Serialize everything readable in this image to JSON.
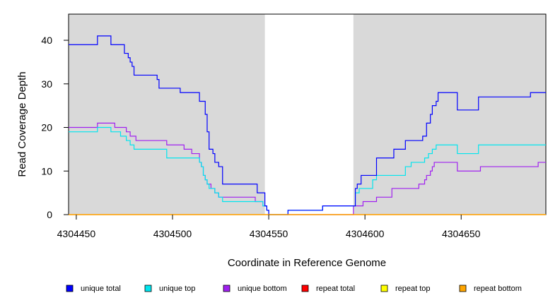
{
  "chart_data": {
    "type": "line",
    "title": "",
    "xlabel": "Coordinate in Reference Genome",
    "ylabel": "Read Coverage Depth",
    "xlim": [
      4304446,
      4304694
    ],
    "ylim": [
      0,
      46
    ],
    "xticks": [
      4304450,
      4304500,
      4304550,
      4304600,
      4304650
    ],
    "yticks": [
      0,
      10,
      20,
      30,
      40
    ],
    "shaded_regions": [
      [
        4304446,
        4304548
      ],
      [
        4304594,
        4304694
      ]
    ],
    "grid": false,
    "legend_position": "bottom",
    "series": [
      {
        "name": "unique total",
        "color": "#0000ff",
        "step": "post",
        "x": [
          4304446,
          4304456,
          4304461,
          4304468,
          4304471,
          4304475,
          4304477,
          4304478,
          4304479,
          4304480,
          4304488,
          4304492,
          4304493,
          4304499,
          4304504,
          4304514,
          4304517,
          4304518,
          4304519,
          4304521,
          4304522,
          4304524,
          4304526,
          4304544,
          4304548,
          4304549,
          4304550,
          4304560,
          4304578,
          4304594,
          4304595,
          4304596,
          4304598,
          4304606,
          4304615,
          4304621,
          4304630,
          4304632,
          4304634,
          4304635,
          4304637,
          4304638,
          4304639,
          4304648,
          4304659,
          4304686,
          4304694
        ],
        "y": [
          39,
          39,
          41,
          39,
          39,
          37,
          36,
          35,
          34,
          32,
          32,
          31,
          29,
          29,
          28,
          26,
          23,
          19,
          15,
          14,
          12,
          11,
          7,
          5,
          2,
          1,
          0,
          1,
          2,
          2,
          6,
          7,
          9,
          13,
          15,
          17,
          18,
          21,
          23,
          25,
          26,
          28,
          28,
          24,
          27,
          28,
          28
        ]
      },
      {
        "name": "unique top",
        "color": "#00e5ee",
        "step": "post",
        "x": [
          4304446,
          4304456,
          4304461,
          4304468,
          4304473,
          4304476,
          4304478,
          4304480,
          4304482,
          4304488,
          4304497,
          4304506,
          4304514,
          4304515,
          4304516,
          4304517,
          4304518,
          4304519,
          4304522,
          4304524,
          4304526,
          4304543,
          4304547,
          4304549,
          4304550,
          4304560,
          4304578,
          4304594,
          4304595,
          4304597,
          4304604,
          4304606,
          4304621,
          4304624,
          4304631,
          4304633,
          4304635,
          4304636,
          4304637,
          4304638,
          4304639,
          4304648,
          4304659,
          4304694
        ],
        "y": [
          19,
          19,
          20,
          19,
          18,
          17,
          16,
          15,
          15,
          15,
          13,
          13,
          12,
          11,
          9,
          8,
          7,
          6,
          5,
          4,
          3,
          3,
          2,
          1,
          0,
          1,
          2,
          2,
          5,
          6,
          8,
          9,
          11,
          12,
          13,
          14,
          15,
          15,
          16,
          16,
          16,
          14,
          16,
          16
        ]
      },
      {
        "name": "unique bottom",
        "color": "#a020f0",
        "step": "post",
        "x": [
          4304446,
          4304456,
          4304461,
          4304470,
          4304473,
          4304476,
          4304478,
          4304481,
          4304484,
          4304488,
          4304497,
          4304506,
          4304510,
          4304514,
          4304515,
          4304516,
          4304517,
          4304518,
          4304519,
          4304520,
          4304522,
          4304524,
          4304526,
          4304540,
          4304543,
          4304547,
          4304549,
          4304550,
          4304594,
          4304599,
          4304606,
          4304614,
          4304628,
          4304631,
          4304632,
          4304634,
          4304635,
          4304636,
          4304637,
          4304648,
          4304660,
          4304679,
          4304684,
          4304690,
          4304694
        ],
        "y": [
          20,
          20,
          21,
          20,
          20,
          19,
          18,
          17,
          17,
          17,
          16,
          15,
          14,
          12,
          11,
          9,
          8,
          7,
          7,
          6,
          5,
          4,
          4,
          4,
          3,
          2,
          1,
          0,
          2,
          3,
          4,
          6,
          7,
          8,
          9,
          10,
          11,
          12,
          12,
          10,
          11,
          11,
          11,
          12,
          12
        ]
      },
      {
        "name": "repeat total",
        "color": "#ff0000",
        "step": "post",
        "x": [
          4304446,
          4304694
        ],
        "y": [
          0,
          0
        ]
      },
      {
        "name": "repeat top",
        "color": "#ffff00",
        "step": "post",
        "x": [
          4304446,
          4304694
        ],
        "y": [
          0,
          0
        ]
      },
      {
        "name": "repeat bottom",
        "color": "#ffa500",
        "step": "post",
        "x": [
          4304446,
          4304694
        ],
        "y": [
          0,
          0
        ]
      }
    ]
  }
}
